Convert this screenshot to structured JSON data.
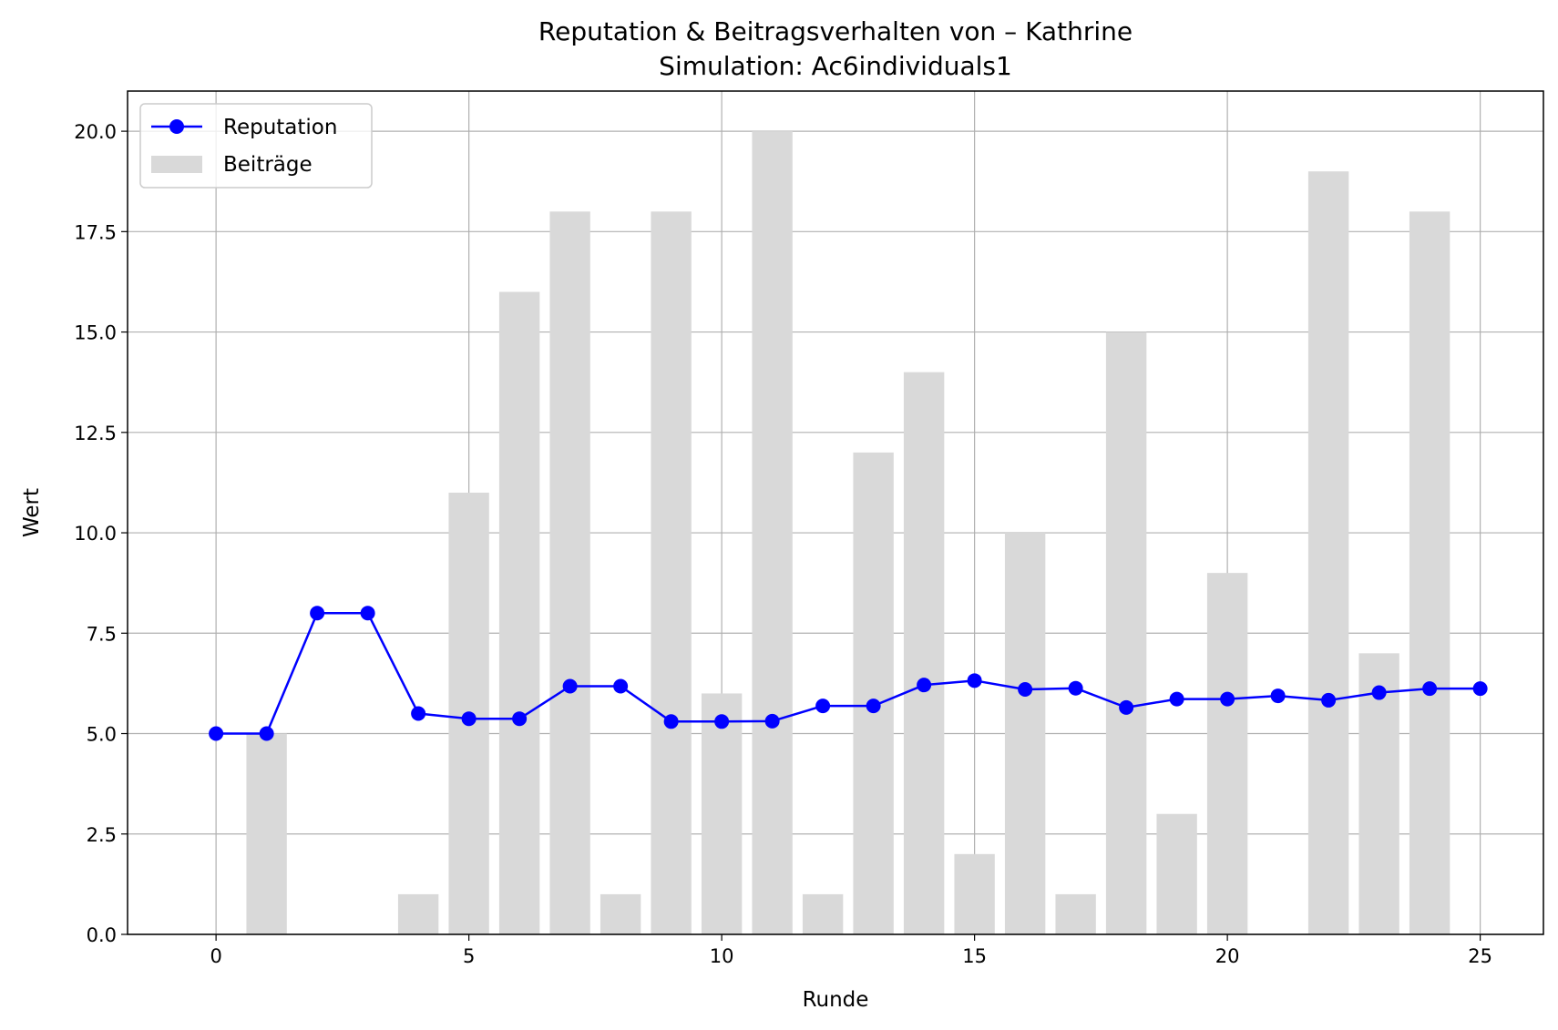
{
  "chart_data": {
    "type": "bar",
    "title": "Reputation & Beitragsverhalten von – Kathrine",
    "subtitle": "Simulation: Ac6individuals1",
    "xlabel": "Runde",
    "ylabel": "Wert",
    "xlim": [
      -1.75,
      26.25
    ],
    "ylim": [
      0,
      21
    ],
    "xticks": [
      0,
      5,
      10,
      15,
      20,
      25
    ],
    "xtick_labels": [
      "0",
      "5",
      "10",
      "15",
      "20",
      "25"
    ],
    "yticks": [
      0,
      2.5,
      5,
      7.5,
      10,
      12.5,
      15,
      17.5,
      20
    ],
    "ytick_labels": [
      "0.0",
      "2.5",
      "5.0",
      "7.5",
      "10.0",
      "12.5",
      "15.0",
      "17.5",
      "20.0"
    ],
    "grid": true,
    "legend_position": "top-left",
    "x": [
      0,
      1,
      2,
      3,
      4,
      5,
      6,
      7,
      8,
      9,
      10,
      11,
      12,
      13,
      14,
      15,
      16,
      17,
      18,
      19,
      20,
      21,
      22,
      23,
      24,
      25
    ],
    "series": [
      {
        "name": "Beiträge",
        "kind": "bar",
        "color": "#d9d9d9",
        "values": [
          0,
          5,
          0,
          0,
          1,
          11,
          16,
          18,
          1,
          18,
          6,
          20,
          1,
          12,
          14,
          2,
          10,
          1,
          15,
          3,
          9,
          0,
          19,
          7,
          18,
          0
        ]
      },
      {
        "name": "Reputation",
        "kind": "line",
        "marker": "circle",
        "color": "#0000ff",
        "values": [
          5.0,
          5.0,
          8.0,
          8.0,
          5.5,
          5.37,
          5.37,
          6.18,
          6.18,
          5.3,
          5.3,
          5.31,
          5.69,
          5.69,
          6.21,
          6.32,
          6.1,
          6.13,
          5.65,
          5.86,
          5.86,
          5.94,
          5.83,
          6.02,
          6.12,
          6.12
        ]
      }
    ]
  }
}
